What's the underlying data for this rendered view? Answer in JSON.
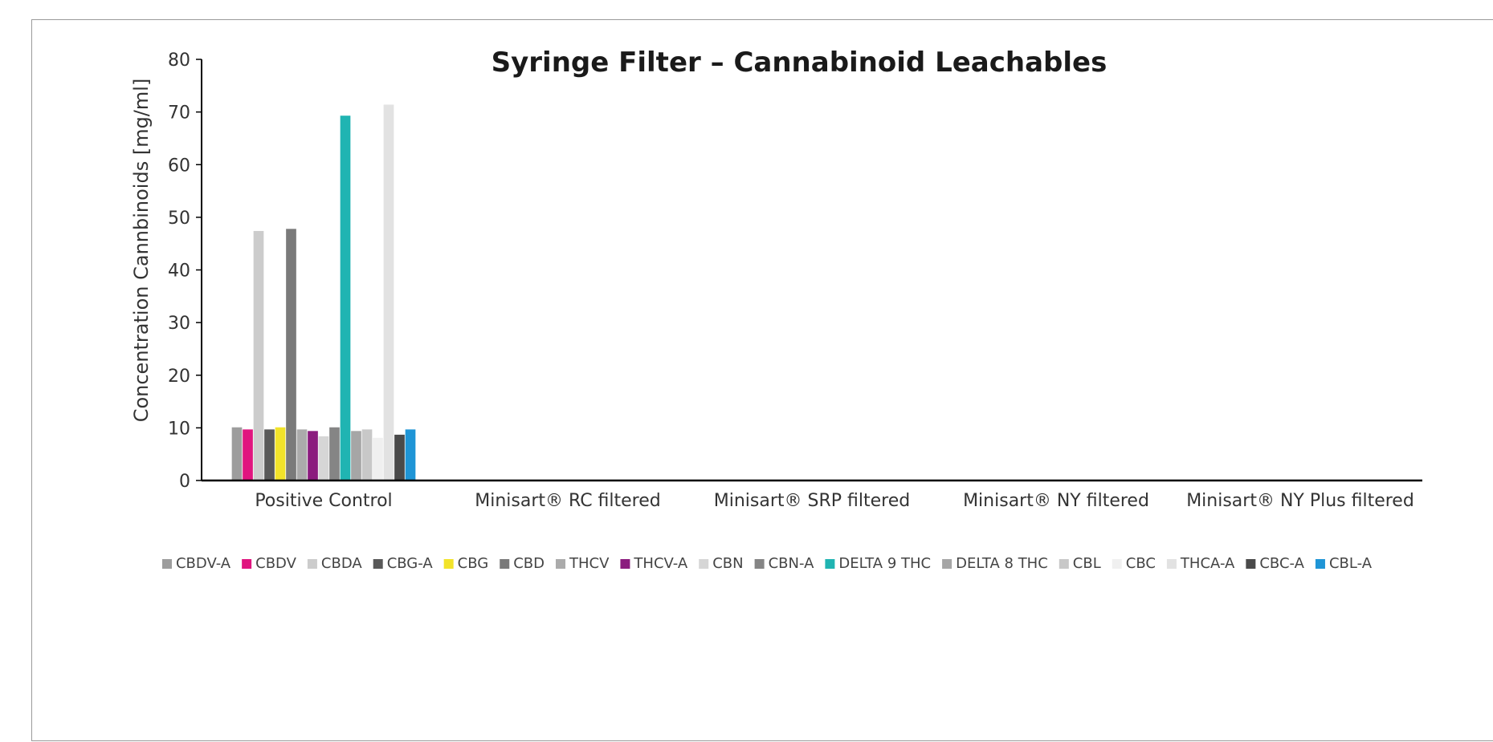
{
  "chart_data": {
    "type": "bar",
    "title": "Syringe Filter – Cannabinoid Leachables",
    "xlabel": "",
    "ylabel": "Concentration Cannbinoids [mg/ml]",
    "ylim": [
      0,
      80
    ],
    "yticks": [
      0,
      10,
      20,
      30,
      40,
      50,
      60,
      70,
      80
    ],
    "grid": false,
    "legend_position": "bottom",
    "categories": [
      "Positive Control",
      "Minisart® RC filtered",
      "Minisart® SRP filtered",
      "Minisart® NY filtered",
      "Minisart® NY Plus filtered"
    ],
    "series": [
      {
        "name": "CBDV-A",
        "color": "#9d9d9d",
        "values": [
          10.1,
          0,
          0,
          0,
          0
        ]
      },
      {
        "name": "CBDV",
        "color": "#e0157f",
        "values": [
          9.7,
          0,
          0,
          0,
          0
        ]
      },
      {
        "name": "CBDA",
        "color": "#cccccc",
        "values": [
          47.4,
          0,
          0,
          0,
          0
        ]
      },
      {
        "name": "CBG-A",
        "color": "#595959",
        "values": [
          9.7,
          0,
          0,
          0,
          0
        ]
      },
      {
        "name": "CBG",
        "color": "#f2e32a",
        "values": [
          10.1,
          0,
          0,
          0,
          0
        ]
      },
      {
        "name": "CBD",
        "color": "#7a7a7a",
        "values": [
          47.8,
          0,
          0,
          0,
          0
        ]
      },
      {
        "name": "THCV",
        "color": "#ababab",
        "values": [
          9.7,
          0,
          0,
          0,
          0
        ]
      },
      {
        "name": "THCV-A",
        "color": "#8b1c7e",
        "values": [
          9.4,
          0,
          0,
          0,
          0
        ]
      },
      {
        "name": "CBN",
        "color": "#d6d6d6",
        "values": [
          8.4,
          0,
          0,
          0,
          0
        ]
      },
      {
        "name": "CBN-A",
        "color": "#858585",
        "values": [
          10.1,
          0,
          0,
          0,
          0
        ]
      },
      {
        "name": "DELTA 9 THC",
        "color": "#20b4b2",
        "values": [
          69.3,
          0,
          0,
          0,
          0
        ]
      },
      {
        "name": "DELTA 8 THC",
        "color": "#a6a6a6",
        "values": [
          9.4,
          0,
          0,
          0,
          0
        ]
      },
      {
        "name": "CBL",
        "color": "#c8c8c8",
        "values": [
          9.7,
          0,
          0,
          0,
          0
        ]
      },
      {
        "name": "CBC",
        "color": "#f0f0f0",
        "values": [
          8.1,
          0,
          0,
          0,
          0
        ]
      },
      {
        "name": "THCA-A",
        "color": "#e2e2e2",
        "values": [
          71.4,
          0,
          0,
          0,
          0
        ]
      },
      {
        "name": "CBC-A",
        "color": "#4a4a4a",
        "values": [
          8.7,
          0,
          0,
          0,
          0
        ]
      },
      {
        "name": "CBL-A",
        "color": "#1f95d6",
        "values": [
          9.7,
          0,
          0,
          0,
          0
        ]
      }
    ]
  }
}
